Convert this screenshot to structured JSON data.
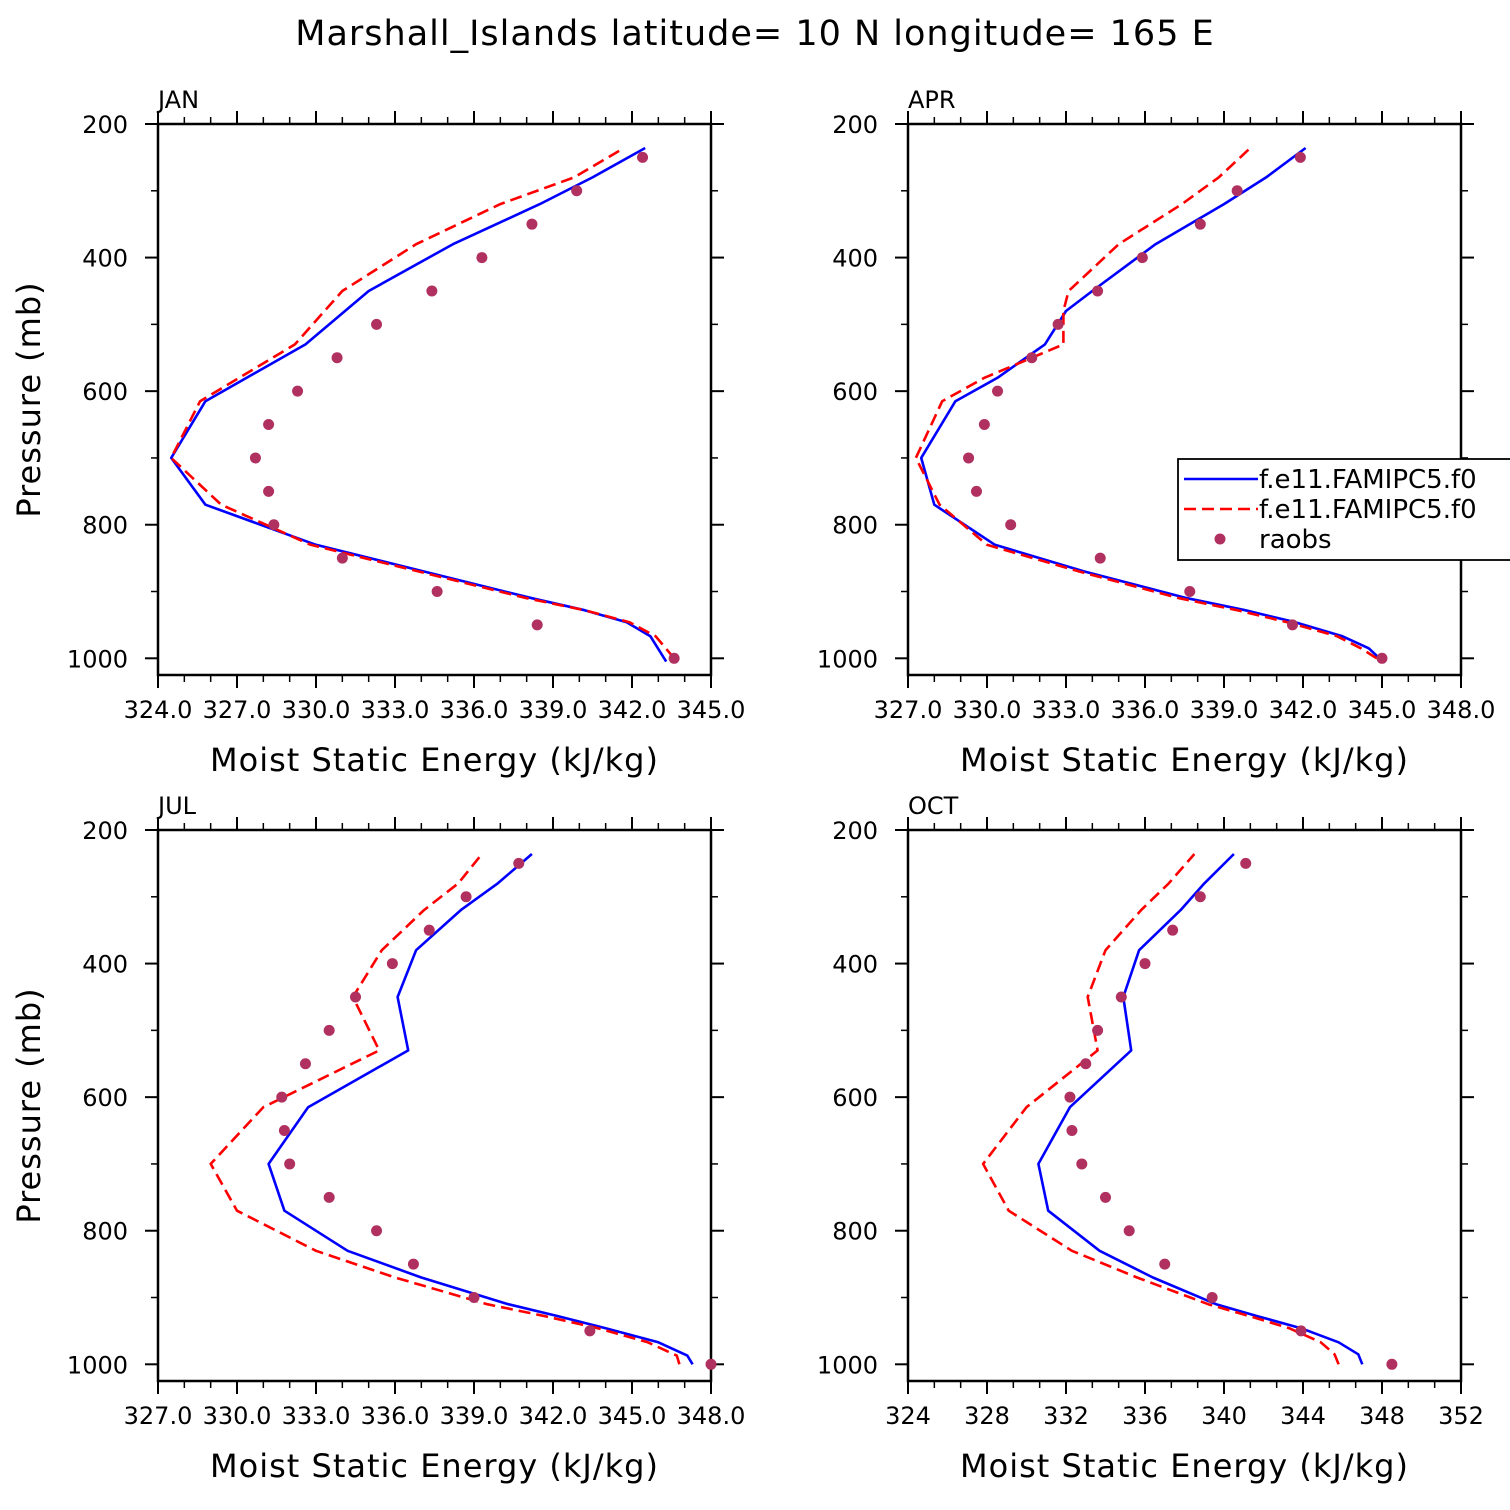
{
  "chart_data": {
    "title": "Marshall_Islands  latitude= 10 N longitude= 165 E",
    "type": "line",
    "colors": {
      "model1": "#0000ff",
      "model2": "#ff0000",
      "raobs": "#b03060",
      "axis": "#000000"
    },
    "legend": {
      "placement": "right of APR panel",
      "entries": [
        {
          "name": "f.e11.FAMIPC5.f0",
          "style": "solid",
          "color": "#0000ff"
        },
        {
          "name": "f.e11.FAMIPC5.f0",
          "style": "dashed",
          "color": "#ff0000"
        },
        {
          "name": "raobs",
          "style": "dot",
          "color": "#b03060"
        }
      ]
    },
    "panels": [
      {
        "label": "JAN",
        "xlabel": "Moist Static Energy (kJ/kg)",
        "ylabel": "Pressure (mb)",
        "xlim": [
          324.0,
          345.0
        ],
        "xticks": [
          324,
          327,
          330,
          333,
          336,
          339,
          342,
          345
        ],
        "xticklabels": [
          "324.0",
          "327.0",
          "330.0",
          "333.0",
          "336.0",
          "339.0",
          "342.0",
          "345.0"
        ],
        "ylim": [
          200,
          1025
        ],
        "yticks": [
          200,
          400,
          600,
          800,
          1000
        ],
        "yticklabels": [
          "200",
          "400",
          "600",
          "800",
          "1000"
        ],
        "series": [
          {
            "name": "f.e11.FAMIPC5.f0",
            "style": "solid",
            "color": "#0000ff",
            "p": [
              1005,
              967,
              946,
              928,
              910,
              870,
              830,
              770,
              700,
              615,
              530,
              450,
              380,
              320,
              280,
              236
            ],
            "mse": [
              343.3,
              342.7,
              341.8,
              340.2,
              338.2,
              334.1,
              330.0,
              325.8,
              324.5,
              325.8,
              329.6,
              332.0,
              335.2,
              338.5,
              340.5,
              342.5
            ]
          },
          {
            "name": "f.e11.FAMIPC5.f0",
            "style": "dashed",
            "color": "#ff0000",
            "p": [
              1000,
              967,
              946,
              928,
              910,
              870,
              830,
              770,
              700,
              615,
              530,
              450,
              380,
              320,
              280,
              236
            ],
            "mse": [
              343.6,
              342.9,
              341.9,
              340.2,
              338.0,
              333.9,
              329.8,
              326.4,
              324.5,
              325.6,
              329.2,
              331.0,
              333.8,
              337.0,
              339.8,
              341.7
            ]
          },
          {
            "name": "raobs",
            "style": "dot",
            "color": "#b03060",
            "p": [
              1000,
              950,
              900,
              850,
              800,
              750,
              700,
              650,
              600,
              550,
              500,
              450,
              400,
              350,
              300,
              250
            ],
            "mse": [
              343.6,
              338.4,
              334.6,
              331.0,
              328.4,
              328.2,
              327.7,
              328.2,
              329.3,
              330.8,
              332.3,
              334.4,
              336.3,
              338.2,
              339.9,
              342.4
            ]
          }
        ]
      },
      {
        "label": "APR",
        "xlabel": "Moist Static Energy (kJ/kg)",
        "ylabel": "",
        "xlim": [
          327.0,
          348.0
        ],
        "xticks": [
          327,
          330,
          333,
          336,
          339,
          342,
          345,
          348
        ],
        "xticklabels": [
          "327.0",
          "330.0",
          "333.0",
          "336.0",
          "339.0",
          "342.0",
          "345.0",
          "348.0"
        ],
        "ylim": [
          200,
          1025
        ],
        "yticks": [
          200,
          400,
          600,
          800,
          1000
        ],
        "yticklabels": [
          "200",
          "400",
          "600",
          "800",
          "1000"
        ],
        "series": [
          {
            "name": "f.e11.FAMIPC5.f0",
            "style": "solid",
            "color": "#0000ff",
            "p": [
              1000,
              985,
              967,
              946,
              928,
              910,
              870,
              830,
              770,
              700,
              615,
              580,
              530,
              480,
              450,
              380,
              320,
              280,
              236
            ],
            "mse": [
              344.9,
              344.5,
              343.5,
              341.7,
              339.8,
              337.6,
              333.7,
              330.3,
              328.0,
              327.5,
              328.8,
              330.4,
              332.2,
              333.0,
              334.0,
              336.4,
              339.0,
              340.6,
              342.1
            ]
          },
          {
            "name": "f.e11.FAMIPC5.f0",
            "style": "dashed",
            "color": "#ff0000",
            "p": [
              1000,
              985,
              967,
              946,
              928,
              910,
              870,
              830,
              770,
              700,
              615,
              580,
              530,
              480,
              450,
              380,
              320,
              280,
              236
            ],
            "mse": [
              344.8,
              344.2,
              343.3,
              341.4,
              339.5,
              337.3,
              333.5,
              330.0,
              328.2,
              327.3,
              328.3,
              329.9,
              332.9,
              332.9,
              333.1,
              335.0,
              337.4,
              338.8,
              340.0
            ]
          },
          {
            "name": "raobs",
            "style": "dot",
            "color": "#b03060",
            "p": [
              1000,
              950,
              900,
              850,
              800,
              750,
              700,
              650,
              600,
              550,
              500,
              450,
              400,
              350,
              300,
              250
            ],
            "mse": [
              345.0,
              341.6,
              337.7,
              334.3,
              330.9,
              329.6,
              329.3,
              329.9,
              330.4,
              331.7,
              332.7,
              334.2,
              335.9,
              338.1,
              339.5,
              341.9
            ]
          }
        ]
      },
      {
        "label": "JUL",
        "xlabel": "Moist Static Energy (kJ/kg)",
        "ylabel": "Pressure (mb)",
        "xlim": [
          327.0,
          348.0
        ],
        "xticks": [
          327,
          330,
          333,
          336,
          339,
          342,
          345,
          348
        ],
        "xticklabels": [
          "327.0",
          "330.0",
          "333.0",
          "336.0",
          "339.0",
          "342.0",
          "345.0",
          "348.0"
        ],
        "ylim": [
          200,
          1025
        ],
        "yticks": [
          200,
          400,
          600,
          800,
          1000
        ],
        "yticklabels": [
          "200",
          "400",
          "600",
          "800",
          "1000"
        ],
        "series": [
          {
            "name": "f.e11.FAMIPC5.f0",
            "style": "solid",
            "color": "#0000ff",
            "p": [
              1000,
              987,
              967,
              946,
              928,
              910,
              870,
              830,
              770,
              700,
              615,
              530,
              450,
              380,
              320,
              280,
              236
            ],
            "mse": [
              347.3,
              347.1,
              346.0,
              344.0,
              342.2,
              340.3,
              337.0,
              334.2,
              331.8,
              331.2,
              332.7,
              336.5,
              336.1,
              336.8,
              338.5,
              339.9,
              341.2
            ]
          },
          {
            "name": "f.e11.FAMIPC5.f0",
            "style": "dashed",
            "color": "#ff0000",
            "p": [
              1000,
              987,
              967,
              946,
              928,
              910,
              870,
              830,
              770,
              700,
              615,
              530,
              450,
              380,
              320,
              280,
              236
            ],
            "mse": [
              346.8,
              346.7,
              345.6,
              343.7,
              341.7,
              339.5,
              336.0,
              333.0,
              330.0,
              329.0,
              331.0,
              335.4,
              334.4,
              335.5,
              337.1,
              338.4,
              339.3
            ]
          },
          {
            "name": "raobs",
            "style": "dot",
            "color": "#b03060",
            "p": [
              1000,
              950,
              900,
              850,
              800,
              750,
              700,
              650,
              600,
              550,
              500,
              450,
              400,
              350,
              300,
              250
            ],
            "mse": [
              348.0,
              343.4,
              339.0,
              336.7,
              335.3,
              333.5,
              332.0,
              331.8,
              331.7,
              332.6,
              333.5,
              334.5,
              335.9,
              337.3,
              338.7,
              340.7
            ]
          }
        ]
      },
      {
        "label": "OCT",
        "xlabel": "Moist Static Energy (kJ/kg)",
        "ylabel": "",
        "xlim": [
          324,
          352
        ],
        "xticks": [
          324,
          328,
          332,
          336,
          340,
          344,
          348,
          352
        ],
        "xticklabels": [
          "324",
          "328",
          "332",
          "336",
          "340",
          "344",
          "348",
          "352"
        ],
        "ylim": [
          200,
          1025
        ],
        "yticks": [
          200,
          400,
          600,
          800,
          1000
        ],
        "yticklabels": [
          "200",
          "400",
          "600",
          "800",
          "1000"
        ],
        "series": [
          {
            "name": "f.e11.FAMIPC5.f0",
            "style": "solid",
            "color": "#0000ff",
            "p": [
              1000,
              985,
              967,
              946,
              928,
              910,
              870,
              830,
              770,
              700,
              615,
              530,
              450,
              380,
              320,
              280,
              236
            ],
            "mse": [
              347.0,
              346.8,
              345.8,
              343.9,
              341.7,
              339.6,
              336.4,
              333.7,
              331.1,
              330.6,
              332.2,
              335.3,
              334.9,
              335.7,
              337.8,
              339.0,
              340.5
            ]
          },
          {
            "name": "f.e11.FAMIPC5.f0",
            "style": "dashed",
            "color": "#ff0000",
            "p": [
              1000,
              985,
              967,
              946,
              928,
              910,
              870,
              830,
              770,
              700,
              615,
              530,
              450,
              380,
              320,
              280,
              236
            ],
            "mse": [
              345.8,
              345.6,
              344.9,
              343.3,
              341.3,
              339.2,
              335.6,
              332.3,
              329.1,
              327.8,
              330.0,
              333.6,
              333.1,
              334.0,
              335.8,
              337.2,
              338.5
            ]
          },
          {
            "name": "raobs",
            "style": "dot",
            "color": "#b03060",
            "p": [
              1000,
              950,
              900,
              850,
              800,
              750,
              700,
              650,
              600,
              550,
              500,
              450,
              400,
              350,
              300,
              250
            ],
            "mse": [
              348.5,
              343.9,
              339.4,
              337.0,
              335.2,
              334.0,
              332.8,
              332.3,
              332.2,
              333.0,
              333.6,
              334.8,
              336.0,
              337.4,
              338.8,
              341.1
            ]
          }
        ]
      }
    ]
  }
}
